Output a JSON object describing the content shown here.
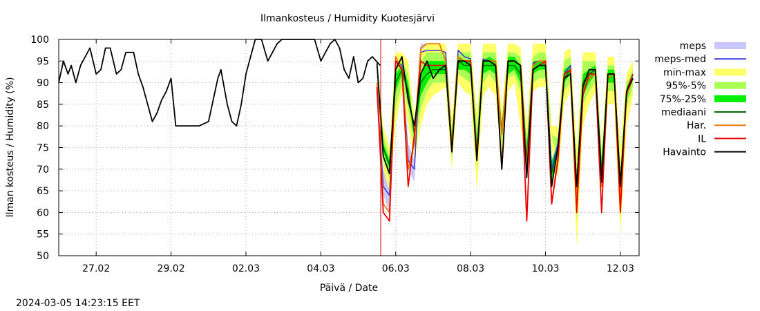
{
  "chart_data": {
    "type": "line",
    "title": "Ilmankosteus / Humidity  Kuotesjärvi",
    "xlabel": "Päivä / Date",
    "ylabel": "Ilman kosteus / Humidity (%)",
    "timestamp": "2024-03-05 14:23:15 EET",
    "ylim": [
      50,
      100
    ],
    "yticks": [
      50,
      55,
      60,
      65,
      70,
      75,
      80,
      85,
      90,
      95,
      100
    ],
    "xlim": [
      "2024-02-26T00:00",
      "2024-03-12T12:00"
    ],
    "xticks": [
      {
        "t": "2024-02-27T00:00",
        "label": "27.02"
      },
      {
        "t": "2024-02-29T00:00",
        "label": "29.02"
      },
      {
        "t": "2024-03-02T00:00",
        "label": "02.03"
      },
      {
        "t": "2024-03-04T00:00",
        "label": "04.03"
      },
      {
        "t": "2024-03-06T00:00",
        "label": "06.03"
      },
      {
        "t": "2024-03-08T00:00",
        "label": "08.03"
      },
      {
        "t": "2024-03-10T00:00",
        "label": "10.03"
      },
      {
        "t": "2024-03-12T00:00",
        "label": "12.03"
      }
    ],
    "grid": true,
    "legend_position": "right",
    "current_time": "2024-03-05T14:23",
    "colors": {
      "meps": "#c8c8ff",
      "meps_med": "#3333dd",
      "min_max": "#ffff66",
      "p95_5": "#aaff55",
      "p75_25": "#00ee00",
      "mediaani": "#006600",
      "har": "#ee7700",
      "il": "#ee0000",
      "havainto": "#000000",
      "now": "#cc0000"
    },
    "legend": [
      {
        "key": "meps",
        "name": "meps",
        "kind": "band"
      },
      {
        "key": "meps_med",
        "name": "meps-med",
        "kind": "line"
      },
      {
        "key": "min_max",
        "name": "min-max",
        "kind": "band"
      },
      {
        "key": "p95_5",
        "name": "95%-5%",
        "kind": "band"
      },
      {
        "key": "p75_25",
        "name": "75%-25%",
        "kind": "band"
      },
      {
        "key": "mediaani",
        "name": "mediaani",
        "kind": "line"
      },
      {
        "key": "har",
        "name": "Har.",
        "kind": "line"
      },
      {
        "key": "il",
        "name": "IL",
        "kind": "line"
      },
      {
        "key": "havainto",
        "name": "Havainto",
        "kind": "line"
      }
    ],
    "havainto": {
      "x": [
        "2024-02-26T00:00",
        "2024-02-26T03:00",
        "2024-02-26T06:00",
        "2024-02-26T08:00",
        "2024-02-26T11:00",
        "2024-02-26T14:00",
        "2024-02-26T17:00",
        "2024-02-26T20:00",
        "2024-02-27T00:00",
        "2024-02-27T03:00",
        "2024-02-27T06:00",
        "2024-02-27T09:00",
        "2024-02-27T13:00",
        "2024-02-27T16:00",
        "2024-02-27T19:00",
        "2024-02-28T00:00",
        "2024-02-28T03:00",
        "2024-02-28T06:00",
        "2024-02-28T09:00",
        "2024-02-28T12:00",
        "2024-02-28T15:00",
        "2024-02-28T18:00",
        "2024-02-28T21:00",
        "2024-02-29T00:00",
        "2024-02-29T03:00",
        "2024-02-29T06:00",
        "2024-02-29T06:30",
        "2024-02-29T12:00",
        "2024-02-29T18:00",
        "2024-03-01T00:00",
        "2024-03-01T06:00",
        "2024-03-01T08:00",
        "2024-03-01T12:00",
        "2024-03-01T15:00",
        "2024-03-01T18:00",
        "2024-03-01T21:00",
        "2024-03-02T00:00",
        "2024-03-02T03:00",
        "2024-03-02T06:00",
        "2024-03-02T10:00",
        "2024-03-02T14:00",
        "2024-03-02T20:00",
        "2024-03-02T23:00",
        "2024-03-03T02:00",
        "2024-03-03T08:00",
        "2024-03-03T14:00",
        "2024-03-03T20:00",
        "2024-03-04T00:00",
        "2024-03-04T03:00",
        "2024-03-04T06:00",
        "2024-03-04T09:00",
        "2024-03-04T12:00",
        "2024-03-04T15:00",
        "2024-03-04T18:00",
        "2024-03-04T21:00",
        "2024-03-05T00:00",
        "2024-03-05T03:00",
        "2024-03-05T06:00",
        "2024-03-05T09:00",
        "2024-03-05T14:00"
      ],
      "y": [
        90,
        95,
        92,
        94,
        90,
        94,
        96,
        98,
        92,
        93,
        98,
        98,
        92,
        93,
        97,
        97,
        92,
        89,
        85,
        81,
        83,
        86,
        88,
        91,
        80,
        80,
        80,
        80,
        80,
        81,
        91,
        93,
        85,
        81,
        80,
        85,
        92,
        96,
        100,
        100,
        95,
        99,
        100,
        100,
        100,
        100,
        100,
        95,
        97,
        99,
        100,
        98,
        93,
        91,
        96,
        90,
        91,
        95,
        96,
        94
      ]
    },
    "forecast_x": [
      "2024-03-05T12:00",
      "2024-03-05T16:00",
      "2024-03-05T20:00",
      "2024-03-06T00:00",
      "2024-03-06T04:00",
      "2024-03-06T08:00",
      "2024-03-06T12:00",
      "2024-03-06T16:00",
      "2024-03-06T20:00",
      "2024-03-07T00:00",
      "2024-03-07T04:00",
      "2024-03-07T08:00",
      "2024-03-07T12:00",
      "2024-03-07T16:00",
      "2024-03-07T20:00",
      "2024-03-08T00:00",
      "2024-03-08T04:00",
      "2024-03-08T08:00",
      "2024-03-08T12:00",
      "2024-03-08T16:00",
      "2024-03-08T20:00",
      "2024-03-09T00:00",
      "2024-03-09T04:00",
      "2024-03-09T08:00",
      "2024-03-09T12:00",
      "2024-03-09T16:00",
      "2024-03-09T20:00",
      "2024-03-10T00:00",
      "2024-03-10T04:00",
      "2024-03-10T08:00",
      "2024-03-10T12:00",
      "2024-03-10T16:00",
      "2024-03-10T20:00",
      "2024-03-11T00:00",
      "2024-03-11T04:00",
      "2024-03-11T08:00",
      "2024-03-11T12:00",
      "2024-03-11T16:00",
      "2024-03-11T20:00",
      "2024-03-12T00:00",
      "2024-03-12T04:00",
      "2024-03-12T08:00"
    ],
    "min_max": {
      "low": [
        92,
        70,
        65,
        80,
        88,
        80,
        72,
        80,
        85,
        87,
        88,
        89,
        70,
        90,
        88,
        87,
        65,
        87,
        89,
        87,
        72,
        88,
        90,
        80,
        70,
        88,
        89,
        89,
        75,
        68,
        85,
        88,
        52,
        80,
        85,
        88,
        65,
        85,
        85,
        55,
        80,
        87
      ],
      "high": [
        96,
        80,
        75,
        97,
        97,
        95,
        82,
        97,
        99,
        99,
        99,
        99,
        82,
        99,
        99,
        99,
        83,
        99,
        99,
        99,
        83,
        99,
        99,
        98,
        80,
        99,
        99,
        99,
        80,
        80,
        97,
        98,
        75,
        97,
        97,
        97,
        75,
        96,
        96,
        75,
        92,
        95
      ]
    },
    "p95_5": {
      "low": [
        93,
        72,
        68,
        84,
        90,
        84,
        75,
        84,
        88,
        90,
        90,
        90,
        72,
        92,
        91,
        90,
        70,
        90,
        92,
        90,
        75,
        91,
        92,
        88,
        75,
        90,
        91,
        91,
        78,
        72,
        88,
        90,
        58,
        85,
        88,
        90,
        70,
        88,
        88,
        60,
        84,
        89
      ],
      "high": [
        95,
        78,
        73,
        94,
        95,
        92,
        78,
        95,
        97,
        97,
        97,
        97,
        79,
        97,
        97,
        97,
        80,
        97,
        97,
        97,
        81,
        97,
        97,
        96,
        77,
        96,
        97,
        97,
        78,
        77,
        95,
        96,
        70,
        95,
        95,
        95,
        73,
        94,
        94,
        70,
        90,
        93
      ]
    },
    "p75_25": {
      "low": [
        94,
        74,
        70,
        88,
        92,
        87,
        77,
        87,
        90,
        92,
        92,
        92,
        75,
        93,
        93,
        92,
        72,
        92,
        93,
        92,
        78,
        92,
        93,
        90,
        70,
        92,
        93,
        93,
        67,
        74,
        90,
        92,
        63,
        87,
        90,
        92,
        67,
        90,
        90,
        65,
        86,
        91
      ],
      "high": [
        95,
        76,
        72,
        92,
        94,
        90,
        79,
        92,
        95,
        95,
        95,
        95,
        78,
        96,
        95,
        95,
        77,
        95,
        96,
        95,
        80,
        96,
        96,
        94,
        75,
        95,
        95,
        95,
        72,
        76,
        93,
        94,
        68,
        92,
        93,
        94,
        72,
        93,
        93,
        68,
        89,
        92
      ]
    },
    "mediaani": [
      94.5,
      75,
      71,
      90,
      93,
      88,
      78,
      90,
      92,
      93,
      93,
      93,
      76,
      95,
      94,
      94,
      74,
      94,
      94,
      94,
      79,
      94,
      94,
      92,
      72,
      93,
      94,
      94,
      69,
      75,
      91,
      93,
      66,
      90,
      92,
      93,
      69,
      92,
      92,
      67,
      87,
      91
    ],
    "meps": {
      "low": [
        85,
        64,
        60,
        92,
        93,
        70,
        67,
        95,
        96,
        96,
        96,
        96,
        72,
        96,
        96,
        95,
        72,
        95,
        95,
        95,
        76,
        95,
        95,
        94,
        70,
        93,
        94,
        94,
        68,
        74,
        91,
        92,
        64,
        88,
        90,
        92,
        66,
        90,
        91,
        64,
        86,
        90
      ],
      "high": [
        93,
        70,
        67,
        96,
        96,
        76,
        72,
        99,
        99,
        99,
        99,
        99,
        76,
        99,
        99,
        98,
        76,
        98,
        98,
        98,
        80,
        97,
        97,
        97,
        74,
        96,
        96,
        96,
        72,
        77,
        94,
        95,
        68,
        92,
        94,
        95,
        70,
        93,
        94,
        68,
        89,
        93
      ]
    },
    "meps_med": [
      88,
      66,
      64,
      95,
      94,
      72,
      70,
      97,
      97.5,
      97.5,
      97.5,
      97,
      75,
      97.5,
      96,
      95.5,
      74,
      95.5,
      95,
      95,
      78,
      95,
      95,
      94,
      72,
      94.5,
      95,
      95,
      70,
      76,
      92,
      94,
      66,
      90,
      92,
      93,
      68,
      92,
      92,
      66,
      88,
      91
    ],
    "har": [
      90,
      62,
      60,
      96,
      93,
      70,
      76,
      98,
      99,
      99,
      99,
      95,
      75,
      96,
      95,
      95,
      73,
      95,
      95,
      95,
      78,
      95,
      95,
      94,
      70,
      94,
      95,
      95,
      62,
      73,
      92,
      93,
      64,
      88,
      91,
      92,
      66,
      91,
      92,
      64,
      87,
      91
    ],
    "il": [
      89,
      60,
      58,
      95,
      93,
      66,
      78,
      95,
      94,
      94,
      94,
      94,
      74,
      95,
      95,
      95,
      72,
      95,
      95,
      94,
      70,
      95,
      95,
      94,
      58,
      93,
      94,
      95,
      62,
      72,
      92,
      93,
      60,
      87,
      92,
      92,
      60,
      92,
      92,
      60,
      88,
      92
    ],
    "havainto_fc": [
      94.5,
      73,
      69,
      93,
      96,
      86,
      80,
      92,
      95,
      91,
      93,
      94,
      74,
      95,
      95,
      94,
      72,
      95,
      95,
      94,
      70,
      95,
      95,
      94,
      68,
      93,
      94,
      94,
      66,
      75,
      91,
      92,
      66,
      89,
      93,
      93,
      67,
      92,
      92,
      66,
      88,
      91
    ]
  }
}
